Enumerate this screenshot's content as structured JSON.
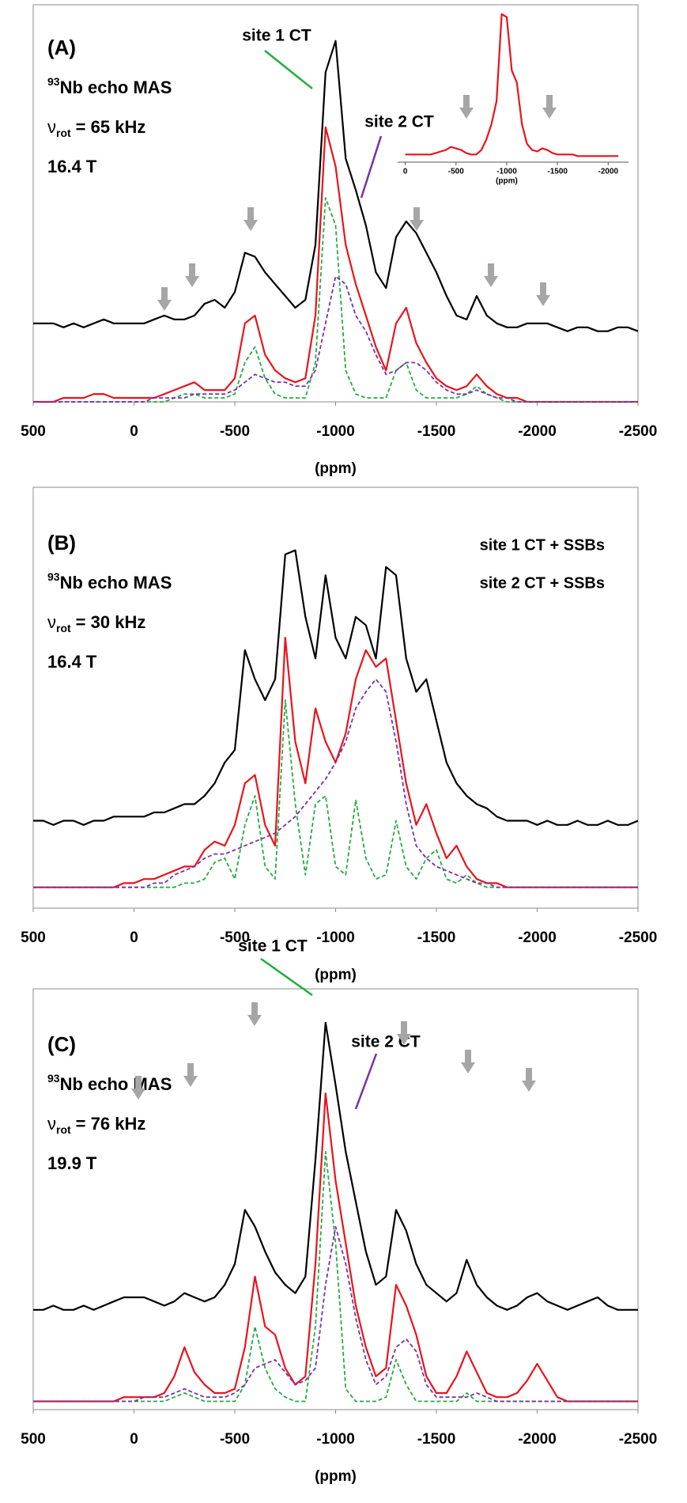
{
  "chart_data": [
    {
      "type": "line",
      "panel_label": "(A)",
      "nucleus": {
        "superscript": "93",
        "text": "Nb echo MAS"
      },
      "rotation": {
        "symbol": "ν",
        "subscript": "rot",
        "text": "= 65 kHz"
      },
      "field": "16.4 T",
      "annotations": [
        {
          "text": "site 1 CT",
          "color": "#22ad3f"
        },
        {
          "text": "site 2 CT",
          "color": "#7a30a8"
        }
      ],
      "x_label": "(ppm)",
      "xlim": [
        500,
        -2500
      ],
      "xticks": [
        500,
        0,
        -500,
        -1000,
        -1500,
        -2000,
        -2500
      ],
      "ylim": [
        0,
        100
      ],
      "x": [
        500,
        450,
        400,
        350,
        300,
        250,
        200,
        150,
        100,
        50,
        0,
        -50,
        -100,
        -150,
        -200,
        -250,
        -300,
        -350,
        -400,
        -450,
        -500,
        -550,
        -600,
        -650,
        -700,
        -750,
        -800,
        -850,
        -900,
        -950,
        -1000,
        -1050,
        -1100,
        -1150,
        -1200,
        -1250,
        -1300,
        -1350,
        -1400,
        -1450,
        -1500,
        -1550,
        -1600,
        -1650,
        -1700,
        -1750,
        -1800,
        -1850,
        -1900,
        -1950,
        -2000,
        -2050,
        -2100,
        -2150,
        -2200,
        -2250,
        -2300,
        -2350,
        -2400,
        -2450,
        -2500
      ],
      "series": [
        {
          "color": "#000000",
          "dashed": false,
          "values": [
            20,
            20,
            20,
            19,
            20,
            19,
            20,
            21,
            20,
            20,
            20,
            20,
            21,
            22,
            21,
            21,
            22,
            25,
            26,
            24,
            28,
            38,
            37,
            33,
            30,
            27,
            24,
            26,
            40,
            84,
            92,
            62,
            54,
            45,
            33,
            29,
            42,
            46,
            43,
            38,
            33,
            27,
            22,
            21,
            27,
            22,
            20,
            19,
            19,
            20,
            20,
            20,
            19,
            18,
            19,
            19,
            18,
            18,
            19,
            19,
            18
          ]
        },
        {
          "color": "#e8141c",
          "dashed": false,
          "values": [
            0,
            0,
            0,
            1,
            1,
            1,
            2,
            2,
            1,
            1,
            1,
            1,
            1,
            2,
            3,
            4,
            5,
            3,
            3,
            3,
            6,
            20,
            22,
            12,
            8,
            6,
            5,
            6,
            22,
            70,
            60,
            40,
            30,
            22,
            14,
            8,
            20,
            24,
            15,
            10,
            6,
            4,
            3,
            4,
            7,
            4,
            2,
            1,
            1,
            0,
            0,
            0,
            0,
            0,
            0,
            0,
            0,
            0,
            0,
            0,
            0
          ]
        },
        {
          "color": "#22ad3f",
          "dashed": true,
          "values": [
            0,
            0,
            0,
            0,
            0,
            0,
            0,
            0,
            0,
            0,
            0,
            0,
            0,
            0,
            1,
            2,
            2,
            1,
            1,
            1,
            2,
            10,
            14,
            6,
            2,
            1,
            1,
            1,
            10,
            52,
            45,
            8,
            2,
            1,
            1,
            1,
            8,
            10,
            3,
            1,
            1,
            1,
            1,
            2,
            4,
            2,
            1,
            0,
            0,
            0,
            0,
            0,
            0,
            0,
            0,
            0,
            0,
            0,
            0,
            0,
            0
          ]
        },
        {
          "color": "#7a30a8",
          "dashed": true,
          "values": [
            0,
            0,
            0,
            0,
            0,
            0,
            0,
            0,
            0,
            0,
            0,
            0,
            1,
            1,
            1,
            1,
            2,
            2,
            2,
            2,
            3,
            5,
            7,
            6,
            5,
            5,
            4,
            4,
            8,
            20,
            32,
            30,
            22,
            18,
            12,
            7,
            8,
            10,
            10,
            8,
            5,
            3,
            2,
            2,
            3,
            2,
            1,
            1,
            0,
            0,
            0,
            0,
            0,
            0,
            0,
            0,
            0,
            0,
            0,
            0,
            0
          ]
        }
      ],
      "inset": {
        "type": "line",
        "x_label": "(ppm)",
        "xlim": [
          75,
          -2200
        ],
        "xticks": [
          0,
          -500,
          -1000,
          -1500,
          -2000
        ],
        "ylim": [
          0,
          100
        ],
        "x": [
          0,
          -50,
          -100,
          -150,
          -200,
          -250,
          -300,
          -350,
          -400,
          -450,
          -500,
          -550,
          -600,
          -650,
          -700,
          -750,
          -800,
          -850,
          -900,
          -950,
          -1000,
          -1050,
          -1100,
          -1150,
          -1200,
          -1250,
          -1300,
          -1350,
          -1400,
          -1450,
          -1500,
          -1550,
          -1600,
          -1650,
          -1700,
          -1750,
          -1800,
          -1850,
          -1900,
          -1950,
          -2000,
          -2050,
          -2100
        ],
        "series": [
          {
            "color": "#e8141c",
            "dashed": false,
            "values": [
              5,
              5,
              5,
              5,
              5,
              5,
              6,
              7,
              8,
              10,
              9,
              8,
              6,
              5,
              5,
              8,
              15,
              25,
              40,
              97,
              95,
              60,
              52,
              25,
              12,
              8,
              7,
              9,
              8,
              6,
              5,
              5,
              5,
              5,
              4,
              4,
              4,
              4,
              4,
              4,
              4,
              4,
              4
            ]
          }
        ]
      }
    },
    {
      "type": "line",
      "panel_label": "(B)",
      "nucleus": {
        "superscript": "93",
        "text": "Nb echo MAS"
      },
      "rotation": {
        "symbol": "ν",
        "subscript": "rot",
        "text": "= 30 kHz"
      },
      "field": "16.4 T",
      "x_label": "(ppm)",
      "xlim": [
        500,
        -2500
      ],
      "xticks": [
        500,
        0,
        -500,
        -1000,
        -1500,
        -2000,
        -2500
      ],
      "ylim": [
        0,
        100
      ],
      "x": [
        500,
        450,
        400,
        350,
        300,
        250,
        200,
        150,
        100,
        50,
        0,
        -50,
        -100,
        -150,
        -200,
        -250,
        -300,
        -350,
        -400,
        -450,
        -500,
        -550,
        -600,
        -650,
        -700,
        -750,
        -800,
        -850,
        -900,
        -950,
        -1000,
        -1050,
        -1100,
        -1150,
        -1200,
        -1250,
        -1300,
        -1350,
        -1400,
        -1450,
        -1500,
        -1550,
        -1600,
        -1650,
        -1700,
        -1750,
        -1800,
        -1850,
        -1900,
        -1950,
        -2000,
        -2050,
        -2100,
        -2150,
        -2200,
        -2250,
        -2300,
        -2350,
        -2400,
        -2450,
        -2500
      ],
      "series": [
        {
          "color": "#000000",
          "dashed": false,
          "values": [
            21,
            21,
            20,
            21,
            21,
            20,
            21,
            21,
            22,
            22,
            22,
            22,
            23,
            23,
            24,
            25,
            25,
            27,
            30,
            35,
            38,
            62,
            55,
            50,
            55,
            85,
            86,
            70,
            60,
            80,
            65,
            60,
            70,
            68,
            60,
            82,
            80,
            60,
            52,
            55,
            45,
            35,
            30,
            27,
            25,
            24,
            22,
            21,
            21,
            21,
            20,
            21,
            20,
            20,
            21,
            20,
            20,
            21,
            20,
            20,
            21
          ]
        },
        {
          "color": "#e8141c",
          "dashed": false,
          "values": [
            5,
            5,
            5,
            5,
            5,
            5,
            5,
            5,
            5,
            6,
            6,
            7,
            7,
            8,
            9,
            10,
            10,
            14,
            16,
            15,
            20,
            30,
            32,
            20,
            15,
            65,
            40,
            30,
            48,
            40,
            35,
            42,
            55,
            62,
            58,
            60,
            45,
            30,
            20,
            25,
            18,
            12,
            15,
            10,
            7,
            6,
            6,
            5,
            5,
            5,
            5,
            5,
            5,
            5,
            5,
            5,
            5,
            5,
            5,
            5,
            5
          ]
        },
        {
          "name": "site 1 CT + SSBs",
          "color": "#22ad3f",
          "dashed": true,
          "values": [
            5,
            5,
            5,
            5,
            5,
            5,
            5,
            5,
            5,
            5,
            5,
            5,
            5,
            5,
            5,
            6,
            6,
            7,
            11,
            12,
            7,
            20,
            27,
            10,
            7,
            50,
            25,
            8,
            25,
            27,
            10,
            8,
            26,
            12,
            7,
            8,
            21,
            10,
            7,
            12,
            14,
            7,
            6,
            8,
            6,
            5,
            5,
            5,
            5,
            5,
            5,
            5,
            5,
            5,
            5,
            5,
            5,
            5,
            5,
            5,
            5
          ]
        },
        {
          "name": "site 2 CT + SSBs",
          "color": "#7a30a8",
          "dashed": true,
          "values": [
            5,
            5,
            5,
            5,
            5,
            5,
            5,
            5,
            5,
            5,
            5,
            5,
            6,
            6,
            8,
            9,
            10,
            12,
            13,
            13,
            14,
            15,
            16,
            17,
            18,
            20,
            22,
            25,
            28,
            31,
            35,
            40,
            48,
            52,
            55,
            52,
            40,
            25,
            15,
            12,
            10,
            9,
            8,
            7,
            6,
            6,
            5,
            5,
            5,
            5,
            5,
            5,
            5,
            5,
            5,
            5,
            5,
            5,
            5,
            5,
            5
          ]
        }
      ]
    },
    {
      "type": "line",
      "panel_label": "(C)",
      "nucleus": {
        "superscript": "93",
        "text": "Nb echo MAS"
      },
      "rotation": {
        "symbol": "ν",
        "subscript": "rot",
        "text": "= 76 kHz"
      },
      "field": "19.9 T",
      "annotations": [
        {
          "text": "site 1 CT",
          "color": "#22ad3f"
        },
        {
          "text": "site 2 CT",
          "color": "#7a30a8"
        }
      ],
      "x_label": "(ppm)",
      "xlim": [
        500,
        -2500
      ],
      "xticks": [
        500,
        0,
        -500,
        -1000,
        -1500,
        -2000,
        -2500
      ],
      "ylim": [
        0,
        100
      ],
      "x": [
        500,
        450,
        400,
        350,
        300,
        250,
        200,
        150,
        100,
        50,
        0,
        -50,
        -100,
        -150,
        -200,
        -250,
        -300,
        -350,
        -400,
        -450,
        -500,
        -550,
        -600,
        -650,
        -700,
        -750,
        -800,
        -850,
        -900,
        -950,
        -1000,
        -1050,
        -1100,
        -1150,
        -1200,
        -1250,
        -1300,
        -1350,
        -1400,
        -1450,
        -1500,
        -1550,
        -1600,
        -1650,
        -1700,
        -1750,
        -1800,
        -1850,
        -1900,
        -1950,
        -2000,
        -2050,
        -2100,
        -2150,
        -2200,
        -2250,
        -2300,
        -2350,
        -2400,
        -2450,
        -2500
      ],
      "series": [
        {
          "color": "#000000",
          "dashed": false,
          "values": [
            24,
            24,
            25,
            24,
            24,
            25,
            24,
            25,
            26,
            27,
            27,
            27,
            26,
            25,
            26,
            28,
            27,
            26,
            27,
            30,
            35,
            48,
            44,
            38,
            33,
            30,
            28,
            32,
            60,
            93,
            78,
            62,
            50,
            38,
            30,
            32,
            48,
            43,
            35,
            30,
            28,
            26,
            28,
            36,
            30,
            27,
            25,
            24,
            25,
            27,
            28,
            26,
            25,
            24,
            25,
            26,
            27,
            25,
            24,
            24,
            24
          ]
        },
        {
          "color": "#e8141c",
          "dashed": false,
          "values": [
            2,
            2,
            2,
            2,
            2,
            2,
            2,
            2,
            2,
            3,
            3,
            3,
            3,
            4,
            8,
            15,
            9,
            6,
            4,
            4,
            5,
            15,
            32,
            20,
            18,
            10,
            6,
            8,
            35,
            76,
            55,
            40,
            25,
            15,
            8,
            10,
            30,
            25,
            18,
            8,
            4,
            4,
            8,
            14,
            9,
            4,
            3,
            3,
            4,
            7,
            11,
            7,
            3,
            2,
            2,
            2,
            2,
            2,
            2,
            2,
            2
          ]
        },
        {
          "color": "#22ad3f",
          "dashed": true,
          "values": [
            2,
            2,
            2,
            2,
            2,
            2,
            2,
            2,
            2,
            2,
            2,
            2,
            2,
            2,
            3,
            4,
            3,
            2,
            2,
            2,
            2,
            6,
            20,
            10,
            5,
            3,
            2,
            2,
            20,
            62,
            40,
            5,
            2,
            2,
            2,
            3,
            12,
            6,
            2,
            2,
            2,
            2,
            2,
            4,
            2,
            2,
            2,
            2,
            2,
            2,
            2,
            2,
            2,
            2,
            2,
            2,
            2,
            2,
            2,
            2,
            2
          ]
        },
        {
          "color": "#7a30a8",
          "dashed": true,
          "values": [
            2,
            2,
            2,
            2,
            2,
            2,
            2,
            2,
            2,
            2,
            2,
            3,
            3,
            3,
            4,
            5,
            4,
            3,
            3,
            3,
            4,
            6,
            10,
            11,
            12,
            9,
            6,
            7,
            10,
            30,
            44,
            35,
            22,
            12,
            6,
            8,
            15,
            17,
            14,
            6,
            3,
            3,
            3,
            3,
            4,
            3,
            2,
            2,
            2,
            2,
            2,
            2,
            2,
            2,
            2,
            2,
            2,
            2,
            2,
            2,
            2
          ]
        }
      ]
    }
  ]
}
